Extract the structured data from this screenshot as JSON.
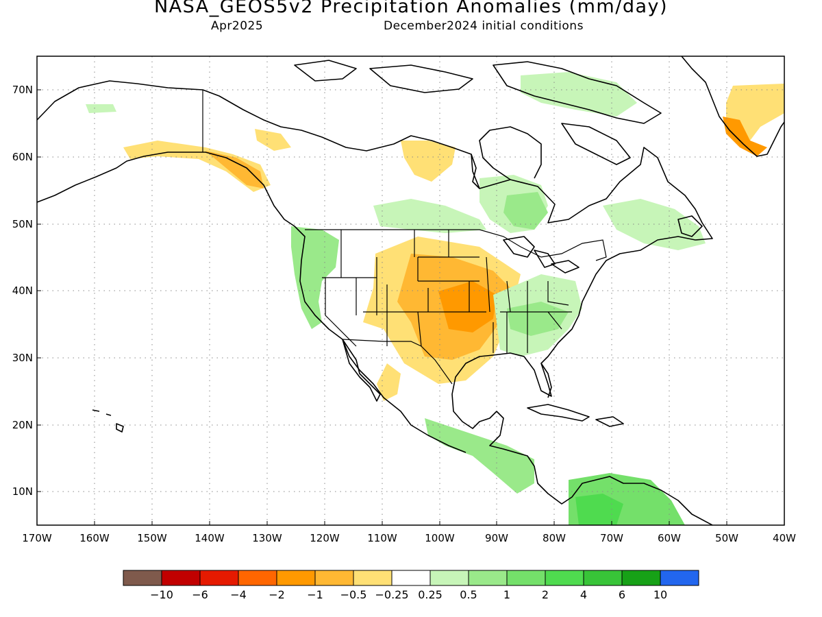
{
  "header": {
    "title": "NASA_GEOS5v2 Precipitation Anomalies (mm/day)",
    "month": "Apr2025",
    "init": "December2024 initial conditions"
  },
  "map": {
    "lat_labels": [
      "70N",
      "60N",
      "50N",
      "40N",
      "30N",
      "20N",
      "10N"
    ],
    "lon_labels": [
      "170W",
      "160W",
      "150W",
      "140W",
      "130W",
      "120W",
      "110W",
      "100W",
      "90W",
      "80W",
      "70W",
      "60W",
      "50W",
      "40W"
    ],
    "lon_range": [
      -170,
      -40
    ],
    "lat_range": [
      5,
      75
    ],
    "grid": true
  },
  "colorbar": {
    "colors": [
      "#7f5a4c",
      "#c10000",
      "#e51a00",
      "#ff6600",
      "#ff9900",
      "#ffb833",
      "#ffe075",
      "#ffffff",
      "#c7f5b8",
      "#9ae98a",
      "#74e06a",
      "#4fdb4f",
      "#38c438",
      "#17a117",
      "#2266ee"
    ],
    "labels": [
      "−10",
      "−6",
      "−4",
      "−2",
      "−1",
      "−0.5",
      "−0.25",
      "0.25",
      "0.5",
      "1",
      "2",
      "4",
      "6",
      "10"
    ]
  }
}
